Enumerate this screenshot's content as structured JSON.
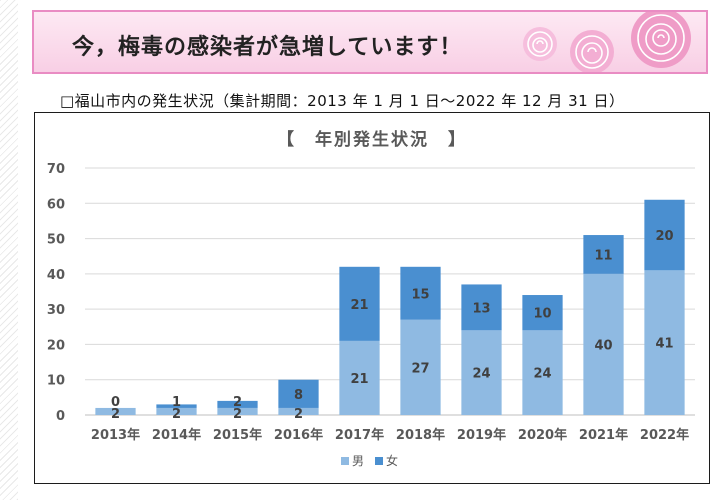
{
  "banner": {
    "title": "今，梅毒の感染者が急増しています！"
  },
  "subtitle": "□福山市内の発生状況（集計期間：2013 年 1 月 1 日～2022 年 12 月 31 日）",
  "colors": {
    "male": "#8fbae2",
    "female": "#4a8fd0",
    "gridline": "#d9d9d9",
    "banner_border": "#e98cc3",
    "rose": "#f2a6cf"
  },
  "chart_data": {
    "type": "bar",
    "stacked": true,
    "title": "【　年別発生状況　】",
    "xlabel": "",
    "ylabel": "",
    "categories": [
      "2013年",
      "2014年",
      "2015年",
      "2016年",
      "2017年",
      "2018年",
      "2019年",
      "2020年",
      "2021年",
      "2022年"
    ],
    "series": [
      {
        "name": "男",
        "values": [
          2,
          2,
          2,
          2,
          21,
          27,
          24,
          24,
          40,
          41
        ]
      },
      {
        "name": "女",
        "values": [
          0,
          1,
          2,
          8,
          21,
          15,
          13,
          10,
          11,
          20
        ]
      }
    ],
    "ylim": [
      0,
      70
    ],
    "yticks": [
      0,
      10,
      20,
      30,
      40,
      50,
      60,
      70
    ],
    "grid": true,
    "legend_position": "bottom",
    "data_labels": true
  }
}
